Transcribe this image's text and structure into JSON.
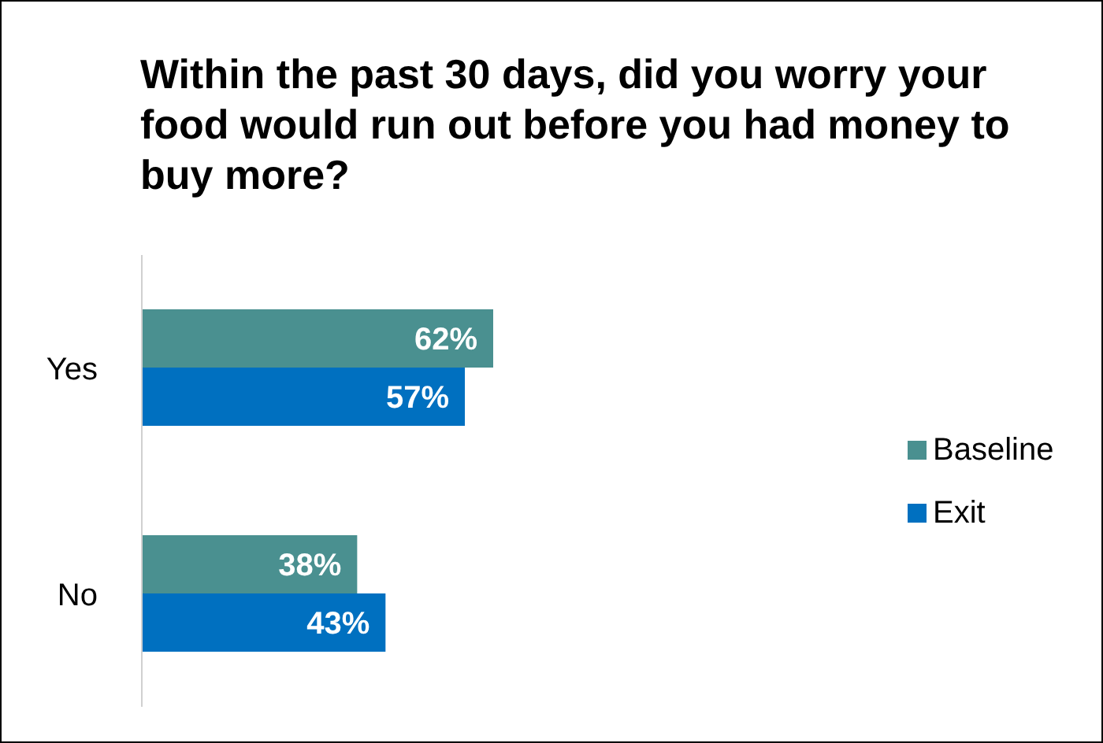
{
  "chart_data": {
    "type": "bar",
    "orientation": "horizontal",
    "title": "Within the past 30 days, did you worry your food would run out before you had money to buy more?",
    "categories": [
      "Yes",
      "No"
    ],
    "series": [
      {
        "name": "Baseline",
        "color": "#4a9090",
        "values": [
          62,
          38
        ],
        "value_labels": [
          "62%",
          "38%"
        ]
      },
      {
        "name": "Exit",
        "color": "#0070c0",
        "values": [
          57,
          43
        ],
        "value_labels": [
          "57%",
          "43%"
        ]
      }
    ],
    "tick_labels": "y",
    "legend": "right",
    "grid": false
  }
}
